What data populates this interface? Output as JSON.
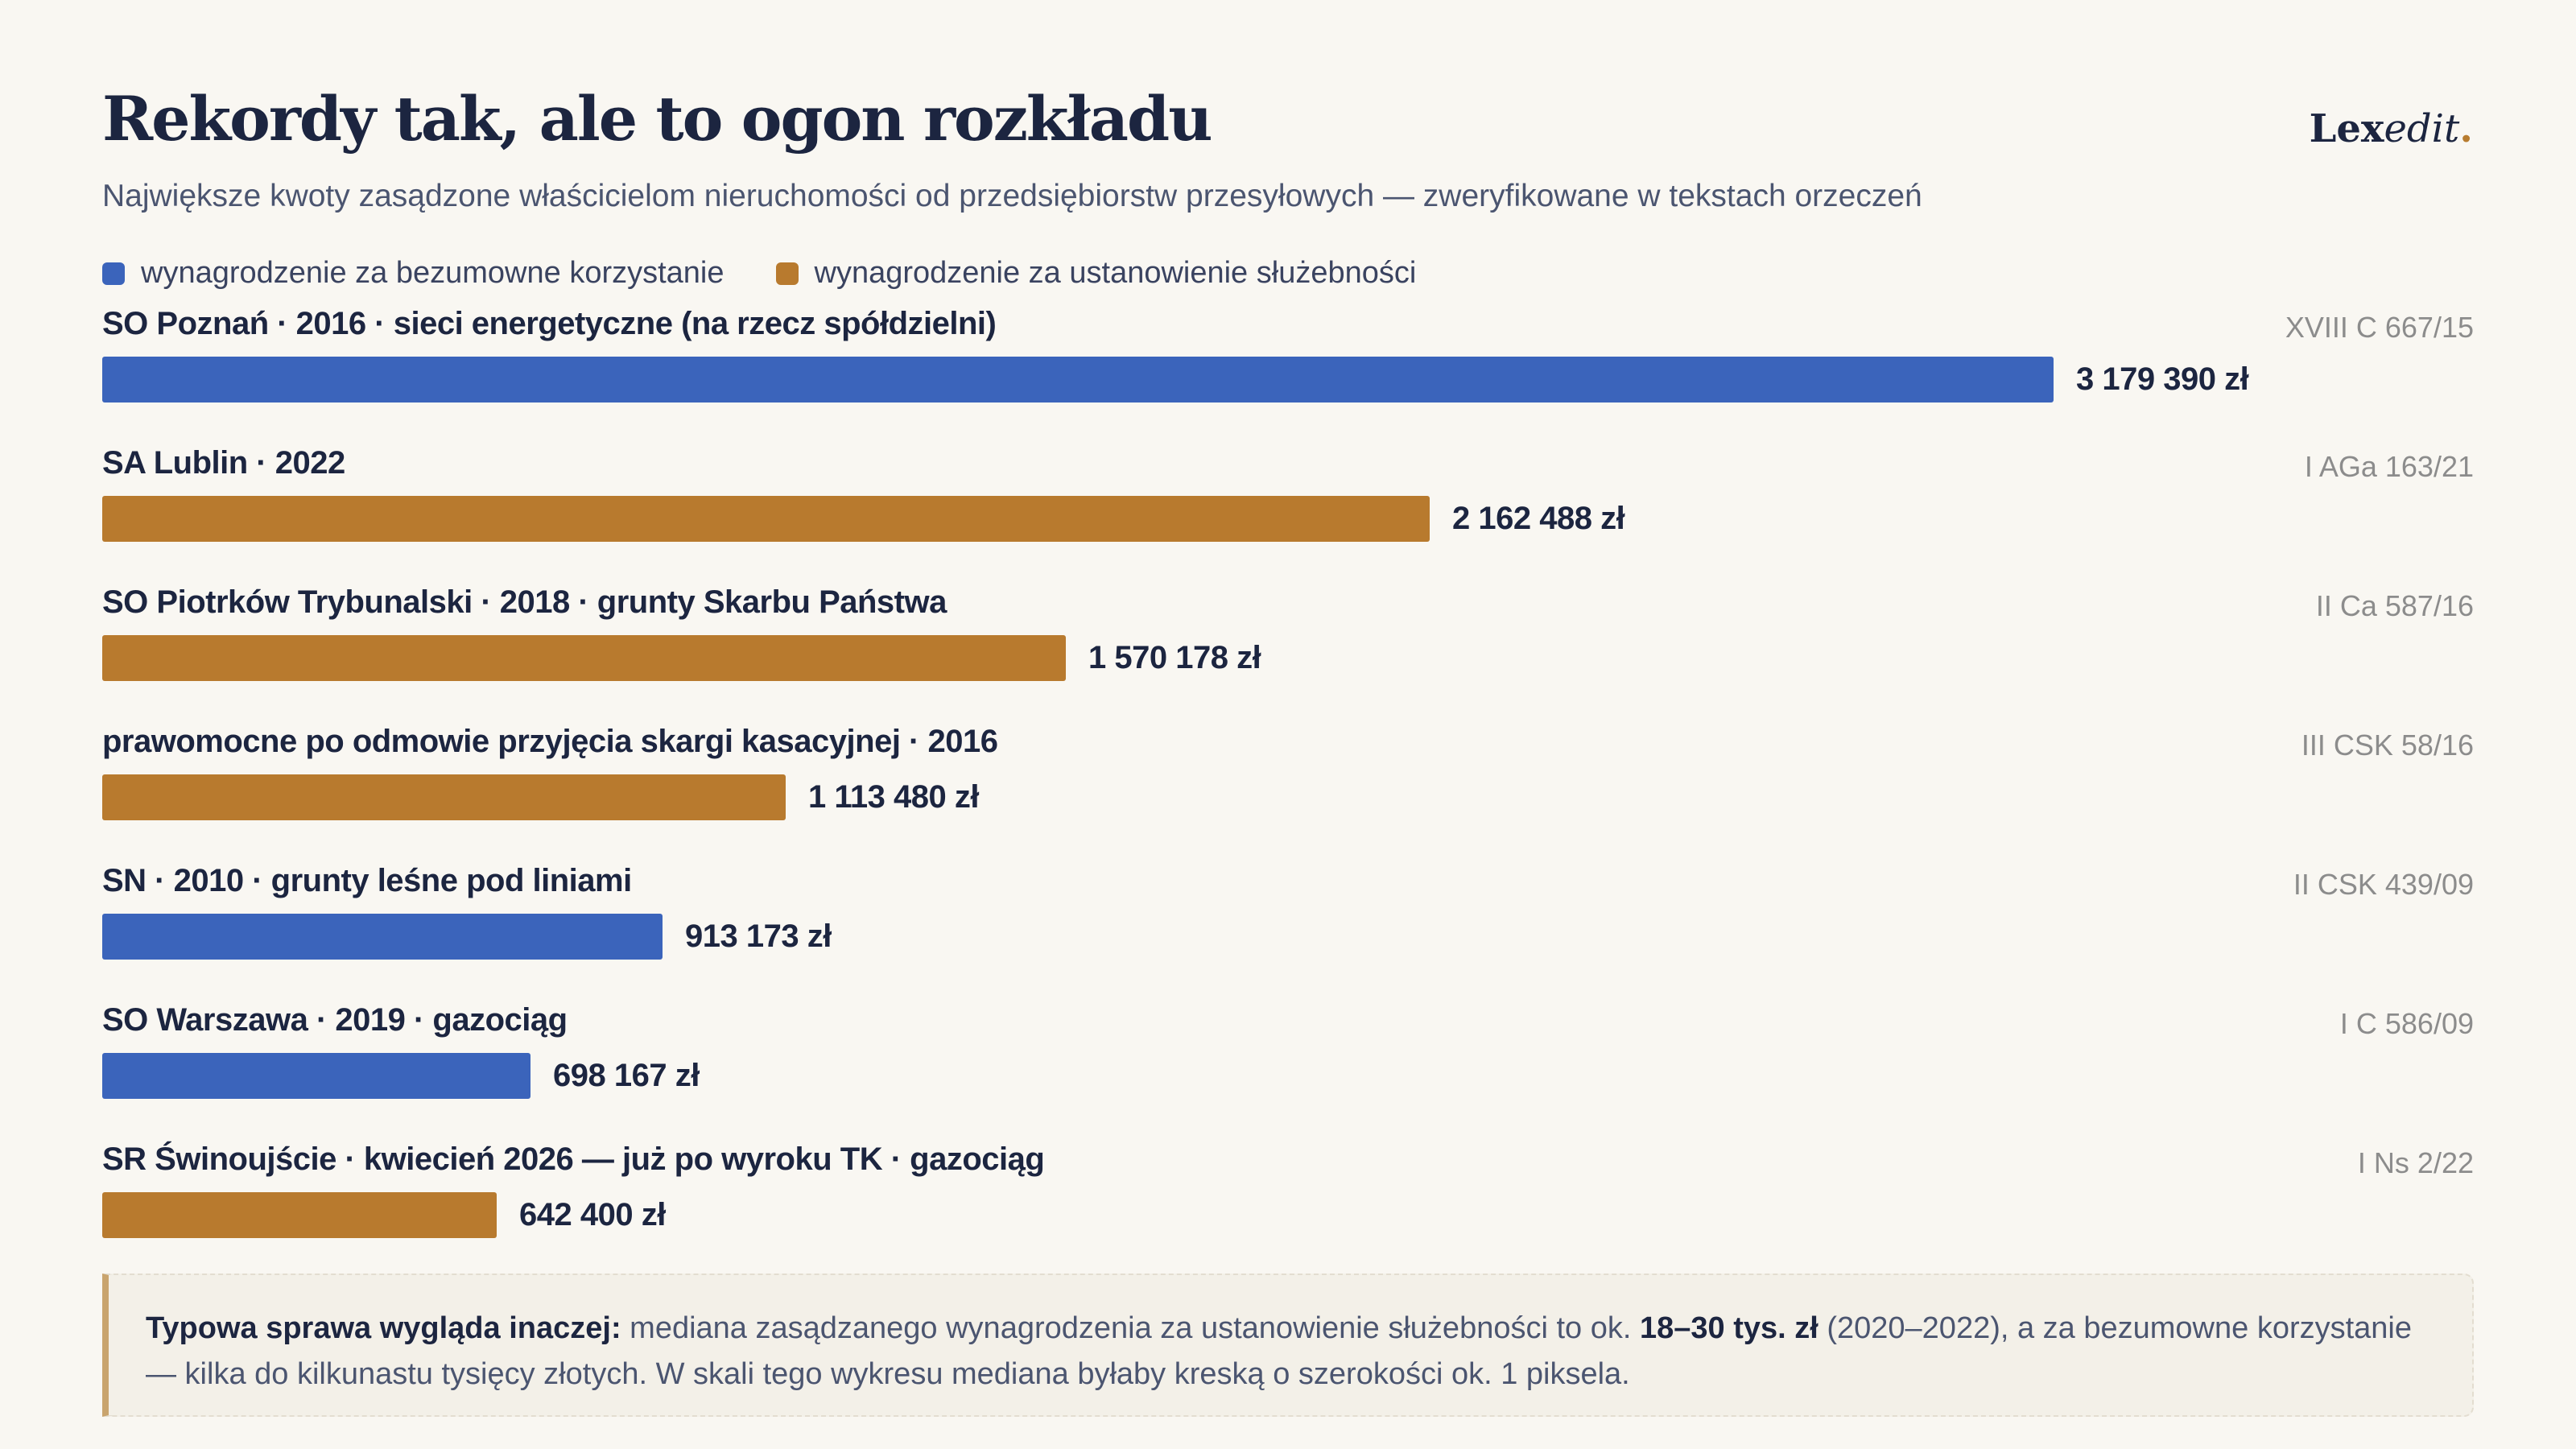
{
  "header": {
    "title": "Rekordy tak, ale to ogon rozkładu",
    "subtitle": "Największe kwoty zasądzone właścicielom nieruchomości od przedsiębiorstw przesyłowych — zweryfikowane w tekstach orzeczeń",
    "brand_main": "Lex",
    "brand_italic": "edit",
    "brand_dot": "."
  },
  "colors": {
    "background": "#f9f7f2",
    "blue": "#3b64bb",
    "orange": "#b87a2e",
    "text_dark": "#1c2540",
    "note_accent": "#c9a46e"
  },
  "chart_data": {
    "type": "bar",
    "orientation": "horizontal",
    "legend": [
      {
        "key": "blue",
        "label": "wynagrodzenie za bezumowne korzystanie"
      },
      {
        "key": "orange",
        "label": "wynagrodzenie za ustanowienie służebności"
      }
    ],
    "legend_placement": "top-left",
    "grid": false,
    "xlim": [
      0,
      3179390
    ],
    "unit": "zł",
    "rows": [
      {
        "label": "SO Poznań · 2016 · sieci energetyczne (na rzecz spółdzielni)",
        "case": "XVIII C 667/15",
        "value": 3179390,
        "value_label": "3 179 390 zł",
        "series": "blue"
      },
      {
        "label": "SA Lublin · 2022",
        "case": "I AGa 163/21",
        "value": 2162488,
        "value_label": "2 162 488 zł",
        "series": "orange"
      },
      {
        "label": "SO Piotrków Trybunalski · 2018 · grunty Skarbu Państwa",
        "case": "II Ca 587/16",
        "value": 1570178,
        "value_label": "1 570 178 zł",
        "series": "orange"
      },
      {
        "label": "prawomocne po odmowie przyjęcia skargi kasacyjnej · 2016",
        "case": "III CSK 58/16",
        "value": 1113480,
        "value_label": "1 113 480 zł",
        "series": "orange"
      },
      {
        "label": "SN · 2010 · grunty leśne pod liniami",
        "case": "II CSK 439/09",
        "value": 913173,
        "value_label": "913 173 zł",
        "series": "blue"
      },
      {
        "label": "SO Warszawa · 2019 · gazociąg",
        "case": "I C 586/09",
        "value": 698167,
        "value_label": "698 167 zł",
        "series": "blue"
      },
      {
        "label": "SR Świnoujście · kwiecień 2026 — już po wyroku TK · gazociąg",
        "case": "I Ns 2/22",
        "value": 642400,
        "value_label": "642 400 zł",
        "series": "orange"
      }
    ]
  },
  "note": {
    "lead": "Typowa sprawa wygląda inaczej:",
    "text1": " mediana zasądzanego wynagrodzenia za ustanowienie służebności to ok. ",
    "highlight": "18–30 tys. zł",
    "text2": " (2020–2022), a za bezumowne korzystanie — kilka do kilkunastu tysięcy złotych. W skali tego wykresu mediana byłaby kreską o szerokości ok. 1 piksela."
  }
}
